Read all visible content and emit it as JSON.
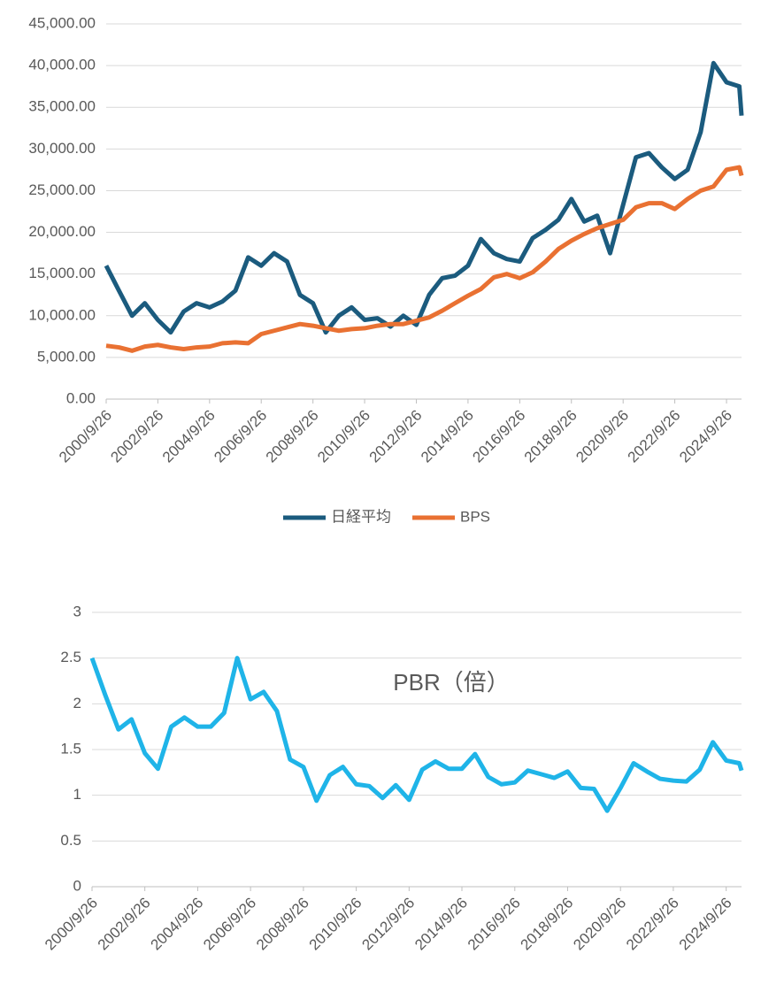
{
  "chart_data": [
    {
      "type": "line",
      "x": [
        "2000/9/26",
        "2001/3/26",
        "2001/9/26",
        "2002/3/26",
        "2002/9/26",
        "2003/3/26",
        "2003/9/26",
        "2004/3/26",
        "2004/9/26",
        "2005/3/26",
        "2005/9/26",
        "2006/3/26",
        "2006/9/26",
        "2007/3/26",
        "2007/9/26",
        "2008/3/26",
        "2008/9/26",
        "2009/3/26",
        "2009/9/26",
        "2010/3/26",
        "2010/9/26",
        "2011/3/26",
        "2011/9/26",
        "2012/3/26",
        "2012/9/26",
        "2013/3/26",
        "2013/9/26",
        "2014/3/26",
        "2014/9/26",
        "2015/3/26",
        "2015/9/26",
        "2016/3/26",
        "2016/9/26",
        "2017/3/26",
        "2017/9/26",
        "2018/3/26",
        "2018/9/26",
        "2019/3/26",
        "2019/9/26",
        "2020/3/26",
        "2020/9/26",
        "2021/3/26",
        "2021/9/26",
        "2022/3/26",
        "2022/9/26",
        "2023/3/26",
        "2023/9/26",
        "2024/3/26",
        "2024/9/26",
        "2025/3/26",
        "2025/4/26"
      ],
      "series": [
        {
          "name": "日経平均",
          "color": "#1b5b7e",
          "values": [
            16000,
            13000,
            10000,
            11500,
            9500,
            8000,
            10500,
            11500,
            11000,
            11700,
            13000,
            17000,
            16000,
            17500,
            16500,
            12500,
            11500,
            8000,
            10000,
            11000,
            9500,
            9700,
            8700,
            10000,
            8900,
            12500,
            14500,
            14800,
            16000,
            19200,
            17500,
            16800,
            16500,
            19300,
            20300,
            21500,
            24000,
            21300,
            22000,
            17500,
            23300,
            29000,
            29500,
            27800,
            26400,
            27500,
            32000,
            40300,
            38000,
            37500,
            34000
          ]
        },
        {
          "name": "BPS",
          "color": "#e97132",
          "values": [
            6400,
            6200,
            5800,
            6300,
            6500,
            6200,
            6000,
            6200,
            6300,
            6700,
            6800,
            6700,
            7800,
            8200,
            8600,
            9000,
            8800,
            8500,
            8200,
            8400,
            8500,
            8800,
            9000,
            9000,
            9400,
            9800,
            10600,
            11500,
            12400,
            13200,
            14600,
            15000,
            14500,
            15200,
            16500,
            18000,
            19000,
            19800,
            20500,
            21000,
            21500,
            23000,
            23500,
            23500,
            22800,
            24000,
            25000,
            25500,
            27500,
            27800,
            26800
          ]
        }
      ],
      "xlim": [
        "2000/9/26",
        "2025/4/26"
      ],
      "xticks": [
        "2000/9/26",
        "2002/9/26",
        "2004/9/26",
        "2006/9/26",
        "2008/9/26",
        "2010/9/26",
        "2012/9/26",
        "2014/9/26",
        "2016/9/26",
        "2018/9/26",
        "2020/9/26",
        "2022/9/26",
        "2024/9/26"
      ],
      "ylim": [
        0,
        45000
      ],
      "yticks": [
        {
          "value": 0,
          "label": "0.00"
        },
        {
          "value": 5000,
          "label": "5,000.00"
        },
        {
          "value": 10000,
          "label": "10,000.00"
        },
        {
          "value": 15000,
          "label": "15,000.00"
        },
        {
          "value": 20000,
          "label": "20,000.00"
        },
        {
          "value": 25000,
          "label": "25,000.00"
        },
        {
          "value": 30000,
          "label": "30,000.00"
        },
        {
          "value": 35000,
          "label": "35,000.00"
        },
        {
          "value": 40000,
          "label": "40,000.00"
        },
        {
          "value": 45000,
          "label": "45,000.00"
        }
      ],
      "grid": true,
      "legend": "bottom"
    },
    {
      "type": "line",
      "annotation": "PBR（倍）",
      "x": [
        "2000/9/26",
        "2001/3/26",
        "2001/9/26",
        "2002/3/26",
        "2002/9/26",
        "2003/3/26",
        "2003/9/26",
        "2004/3/26",
        "2004/9/26",
        "2005/3/26",
        "2005/9/26",
        "2006/3/26",
        "2006/9/26",
        "2007/3/26",
        "2007/9/26",
        "2008/3/26",
        "2008/9/26",
        "2009/3/26",
        "2009/9/26",
        "2010/3/26",
        "2010/9/26",
        "2011/3/26",
        "2011/9/26",
        "2012/3/26",
        "2012/9/26",
        "2013/3/26",
        "2013/9/26",
        "2014/3/26",
        "2014/9/26",
        "2015/3/26",
        "2015/9/26",
        "2016/3/26",
        "2016/9/26",
        "2017/3/26",
        "2017/9/26",
        "2018/3/26",
        "2018/9/26",
        "2019/3/26",
        "2019/9/26",
        "2020/3/26",
        "2020/9/26",
        "2021/3/26",
        "2021/9/26",
        "2022/3/26",
        "2022/9/26",
        "2023/3/26",
        "2023/9/26",
        "2024/3/26",
        "2024/9/26",
        "2025/3/26",
        "2025/4/26"
      ],
      "color": "#1fb4e8",
      "values": [
        2.5,
        2.1,
        1.72,
        1.83,
        1.46,
        1.29,
        1.75,
        1.85,
        1.75,
        1.75,
        1.9,
        2.5,
        2.05,
        2.13,
        1.92,
        1.39,
        1.31,
        0.94,
        1.22,
        1.31,
        1.12,
        1.1,
        0.97,
        1.11,
        0.95,
        1.28,
        1.37,
        1.29,
        1.29,
        1.45,
        1.2,
        1.12,
        1.14,
        1.27,
        1.23,
        1.19,
        1.26,
        1.08,
        1.07,
        0.83,
        1.08,
        1.35,
        1.26,
        1.18,
        1.16,
        1.15,
        1.28,
        1.58,
        1.38,
        1.35,
        1.27
      ],
      "xlim": [
        "2000/9/26",
        "2025/4/26"
      ],
      "xticks": [
        "2000/9/26",
        "2002/9/26",
        "2004/9/26",
        "2006/9/26",
        "2008/9/26",
        "2010/9/26",
        "2012/9/26",
        "2014/9/26",
        "2016/9/26",
        "2018/9/26",
        "2020/9/26",
        "2022/9/26",
        "2024/9/26"
      ],
      "ylim": [
        0,
        3
      ],
      "yticks": [
        0,
        0.5,
        1,
        1.5,
        2,
        2.5,
        3
      ],
      "grid": true
    }
  ]
}
